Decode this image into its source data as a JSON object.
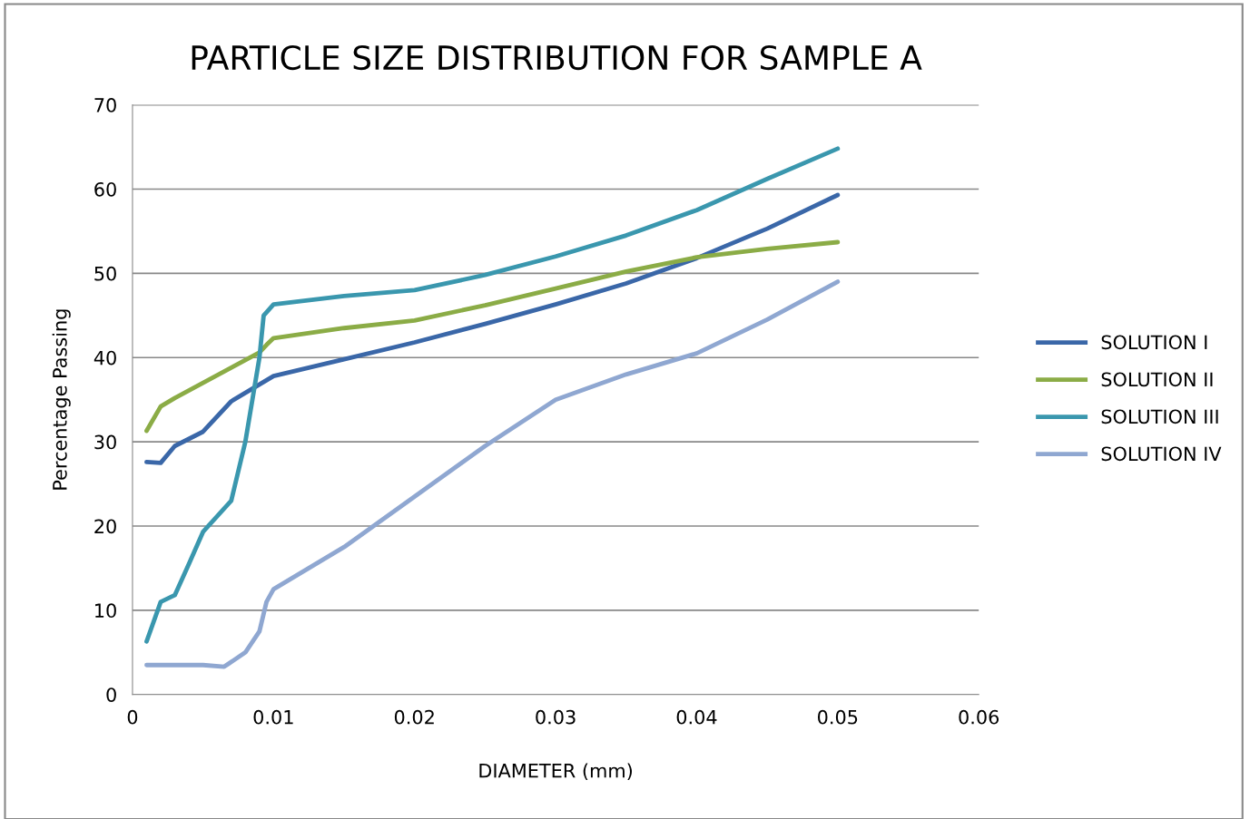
{
  "chart_data": {
    "type": "line",
    "title": "PARTICLE SIZE DISTRIBUTION FOR SAMPLE A",
    "xlabel": "DIAMETER (mm)",
    "ylabel": "Percentage Passing",
    "xlim": [
      0,
      0.06
    ],
    "xticks": [
      0,
      0.01,
      0.02,
      0.03,
      0.04,
      0.05,
      0.06
    ],
    "ylim": [
      0,
      70
    ],
    "yticks": [
      0,
      10,
      20,
      30,
      40,
      50,
      60,
      70
    ],
    "grid": "y",
    "legend": "right",
    "marker": "none",
    "line_style": "solid",
    "series": [
      {
        "name": "SOLUTION I",
        "color": "#3a67a8",
        "x": [
          0.001,
          0.002,
          0.003,
          0.005,
          0.007,
          0.009,
          0.01,
          0.015,
          0.02,
          0.025,
          0.03,
          0.035,
          0.04,
          0.045,
          0.05
        ],
        "values": [
          27.6,
          27.5,
          29.5,
          31.2,
          34.8,
          36.8,
          37.8,
          39.8,
          41.8,
          44,
          46.3,
          48.8,
          51.8,
          55.3,
          59.3
        ]
      },
      {
        "name": "SOLUTION II",
        "color": "#8bac46",
        "x": [
          0.001,
          0.002,
          0.003,
          0.005,
          0.007,
          0.009,
          0.0095,
          0.01,
          0.015,
          0.02,
          0.025,
          0.03,
          0.035,
          0.04,
          0.045,
          0.05
        ],
        "values": [
          31.3,
          34.2,
          35.2,
          37,
          38.8,
          40.6,
          41.5,
          42.3,
          43.5,
          44.4,
          46.2,
          48.2,
          50.2,
          51.9,
          52.9,
          53.7
        ]
      },
      {
        "name": "SOLUTION III",
        "color": "#3a97ae",
        "x": [
          0.001,
          0.002,
          0.003,
          0.004,
          0.005,
          0.007,
          0.008,
          0.009,
          0.0093,
          0.01,
          0.015,
          0.02,
          0.025,
          0.03,
          0.035,
          0.04,
          0.045,
          0.05
        ],
        "values": [
          6.3,
          11,
          11.8,
          15.5,
          19.3,
          23,
          30,
          40,
          45,
          46.3,
          47.3,
          48,
          49.8,
          52,
          54.5,
          57.5,
          61.2,
          64.8
        ]
      },
      {
        "name": "SOLUTION IV",
        "color": "#8fa7d1",
        "x": [
          0.001,
          0.005,
          0.0065,
          0.008,
          0.009,
          0.0095,
          0.01,
          0.015,
          0.02,
          0.025,
          0.03,
          0.035,
          0.04,
          0.045,
          0.05
        ],
        "values": [
          3.5,
          3.5,
          3.3,
          5,
          7.5,
          11,
          12.5,
          17.5,
          23.5,
          29.5,
          35,
          38,
          40.5,
          44.5,
          49
        ]
      }
    ]
  }
}
